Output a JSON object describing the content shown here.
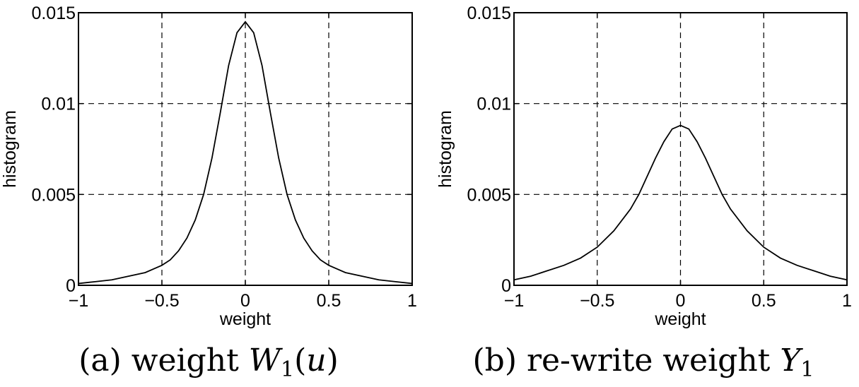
{
  "chart_data": [
    {
      "type": "line",
      "title": "",
      "xlabel": "weight",
      "ylabel": "histogram",
      "xlim": [
        -1,
        1
      ],
      "ylim": [
        0,
        0.015
      ],
      "xticks": [
        -1,
        -0.5,
        0,
        0.5,
        1
      ],
      "xtick_labels": [
        "−1",
        "−0.5",
        "0",
        "0.5",
        "1"
      ],
      "yticks": [
        0,
        0.005,
        0.01,
        0.015
      ],
      "ytick_labels": [
        "0",
        "0.005",
        "0.01",
        "0.015"
      ],
      "grid": true,
      "caption_prefix": "(a) weight ",
      "caption_math": "W",
      "caption_sub": "1",
      "caption_suffix": "(u)",
      "series": [
        {
          "x": [
            -1,
            -0.9,
            -0.8,
            -0.7,
            -0.6,
            -0.5,
            -0.45,
            -0.4,
            -0.35,
            -0.3,
            -0.25,
            -0.2,
            -0.15,
            -0.1,
            -0.05,
            0,
            0.05,
            0.1,
            0.15,
            0.2,
            0.25,
            0.3,
            0.35,
            0.4,
            0.45,
            0.5,
            0.6,
            0.7,
            0.8,
            0.9,
            1
          ],
          "y": [
            0.0001,
            0.0002,
            0.0003,
            0.0005,
            0.0007,
            0.0011,
            0.0014,
            0.0019,
            0.0026,
            0.0036,
            0.005,
            0.007,
            0.0095,
            0.0121,
            0.0139,
            0.0145,
            0.0139,
            0.0121,
            0.0095,
            0.007,
            0.005,
            0.0036,
            0.0026,
            0.0019,
            0.0014,
            0.0011,
            0.0007,
            0.0005,
            0.0003,
            0.0002,
            0.0001
          ]
        }
      ]
    },
    {
      "type": "line",
      "title": "",
      "xlabel": "weight",
      "ylabel": "histogram",
      "xlim": [
        -1,
        1
      ],
      "ylim": [
        0,
        0.015
      ],
      "xticks": [
        -1,
        -0.5,
        0,
        0.5,
        1
      ],
      "xtick_labels": [
        "−1",
        "−0.5",
        "0",
        "0.5",
        "1"
      ],
      "yticks": [
        0,
        0.005,
        0.01,
        0.015
      ],
      "ytick_labels": [
        "0",
        "0.005",
        "0.01",
        "0.015"
      ],
      "grid": true,
      "caption_prefix": "(b) re-write weight ",
      "caption_math": "Y",
      "caption_sub": "1",
      "caption_suffix": "",
      "series": [
        {
          "x": [
            -1,
            -0.9,
            -0.8,
            -0.7,
            -0.6,
            -0.5,
            -0.4,
            -0.3,
            -0.25,
            -0.2,
            -0.15,
            -0.1,
            -0.05,
            0,
            0.05,
            0.1,
            0.15,
            0.2,
            0.25,
            0.3,
            0.4,
            0.5,
            0.6,
            0.7,
            0.8,
            0.9,
            1
          ],
          "y": [
            0.0003,
            0.0005,
            0.0008,
            0.0011,
            0.0015,
            0.0021,
            0.003,
            0.0042,
            0.005,
            0.006,
            0.007,
            0.0079,
            0.0086,
            0.0088,
            0.0086,
            0.0079,
            0.007,
            0.006,
            0.005,
            0.0042,
            0.003,
            0.0021,
            0.0015,
            0.0011,
            0.0008,
            0.0005,
            0.0003
          ]
        }
      ]
    }
  ]
}
